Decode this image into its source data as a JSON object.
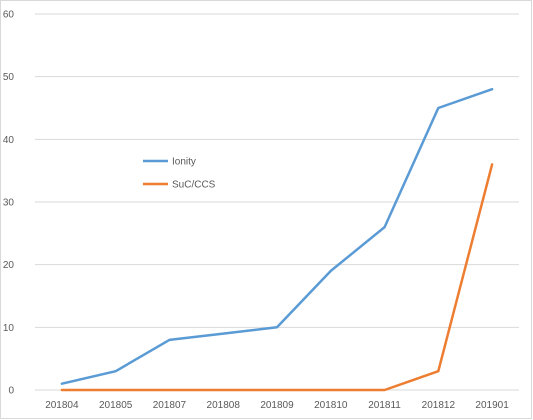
{
  "chart_data": {
    "type": "line",
    "title": "",
    "xlabel": "",
    "ylabel": "",
    "categories": [
      "201804",
      "201805",
      "201807",
      "201808",
      "201809",
      "201810",
      "201811",
      "201812",
      "201901"
    ],
    "ylim": [
      0,
      60
    ],
    "yticks": [
      0,
      10,
      20,
      30,
      40,
      50,
      60
    ],
    "grid": true,
    "legend_position": "center-left",
    "series": [
      {
        "name": "Ionity",
        "color": "#5b9bd5",
        "values": [
          1,
          3,
          8,
          9,
          10,
          19,
          26,
          45,
          48
        ]
      },
      {
        "name": "SuC/CCS",
        "color": "#ed7d31",
        "values": [
          0,
          0,
          0,
          0,
          0,
          0,
          0,
          3,
          36
        ]
      }
    ]
  }
}
